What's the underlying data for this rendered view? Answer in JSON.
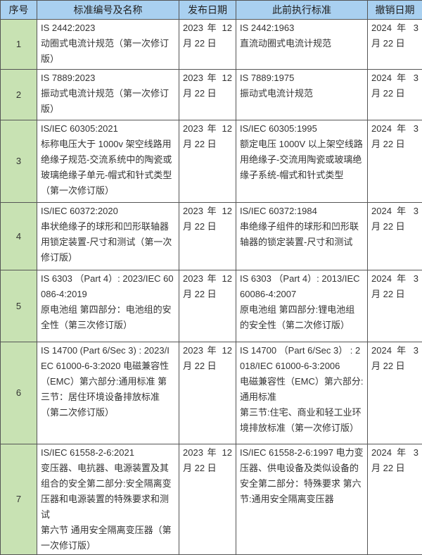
{
  "headers": [
    "序号",
    "标准编号及名称",
    "发布日期",
    "此前执行标准",
    "撤销日期"
  ],
  "colors": {
    "header_bg": "#a9d0f0",
    "index_col_bg": "#c8e2b3",
    "border": "#555555"
  },
  "rows": [
    {
      "index": "1",
      "standard": [
        "IS 2442:2023",
        "动圈式电流计规范（第一次修订版）"
      ],
      "published": "2023 年 12 月 22 日",
      "previous": [
        "IS 2442:1963",
        "直流动圈式电流计规范"
      ],
      "withdrawn": "2024 年 3 月 22 日"
    },
    {
      "index": "2",
      "standard": [
        "IS 7889:2023",
        "振动式电流计规范（第一次修订版）"
      ],
      "published": "2023 年 12 月 22 日",
      "previous": [
        "IS 7889:1975",
        "振动式电流计规范"
      ],
      "withdrawn": "2024 年 3 月 22 日"
    },
    {
      "index": "3",
      "standard": [
        "IS/IEC 60305:2021",
        "标称电压大于 1000v 架空线路用绝缘子规范-交流系统中的陶瓷或玻璃绝缘子单元-帽式和针式类型（第一次修订版）"
      ],
      "published": "2023 年 12 月 22 日",
      "previous": [
        "IS/IEC 60305:1995",
        "额定电压 1000V 以上架空线路用绝缘子-交流用陶瓷或玻璃绝缘子系统-帽式和针式类型"
      ],
      "withdrawn": "2024 年 3 月 22 日"
    },
    {
      "index": "4",
      "standard": [
        "IS/IEC 60372:2020",
        "串状绝缘子的球形和凹形联轴器用锁定装置-尺寸和测试（第一次修订版）"
      ],
      "published": "2023 年 12 月 22 日",
      "previous": [
        "IS/IEC 60372:1984",
        "串绝缘子组件的球形和凹形联轴器的锁定装置-尺寸和测试"
      ],
      "withdrawn": "2024 年 3 月 22 日"
    },
    {
      "index": "5",
      "standard": [
        "IS 6303 （Part 4）: 2023/IEC 60086-4:2019",
        "原电池组 第四部分：电池组的安全性（第三次修订版）"
      ],
      "published": "2023 年 12 月 22 日",
      "previous": [
        "IS 6303 （Part 4）: 2013/IEC 60086-4:2007",
        "原电池组 第四部分:锂电池组的安全性（第二次修订版）"
      ],
      "withdrawn": "2024 年 3 月 22 日"
    },
    {
      "index": "6",
      "standard": [
        "IS 14700 (Part 6/Sec 3) : 2023/IEC 61000-6-3:2020 电磁兼容性（EMC）第六部分:通用标准 第三节：居住环境设备排放标准（第二次修订版）"
      ],
      "published": "2023 年 12 月 22 日",
      "previous": [
        "IS 14700 （Part 6/Sec 3） : 2018/IEC 61000-6-3:2006",
        "电磁兼容性（EMC）第六部分:通用标准",
        "第三节:住宅、商业和轻工业环境排放标准（第一次修订版）"
      ],
      "withdrawn": "2024 年 3 月 22 日"
    },
    {
      "index": "7",
      "standard": [
        "IS/IEC 61558-2-6:2021",
        "变压器、电抗器、电源装置及其组合的安全第二部分:安全隔离变压器和电源装置的特殊要求和测试",
        "第六节 通用安全隔离变压器（第一次修订版）"
      ],
      "published": "2023 年 12 月 22 日",
      "previous": [
        "IS/IEC 61558-2-6:1997 电力变压器、供电设备及类似设备的安全第二部分：特殊要求 第六节:通用安全隔离变压器"
      ],
      "withdrawn": "2024 年 3 月 22 日"
    }
  ]
}
